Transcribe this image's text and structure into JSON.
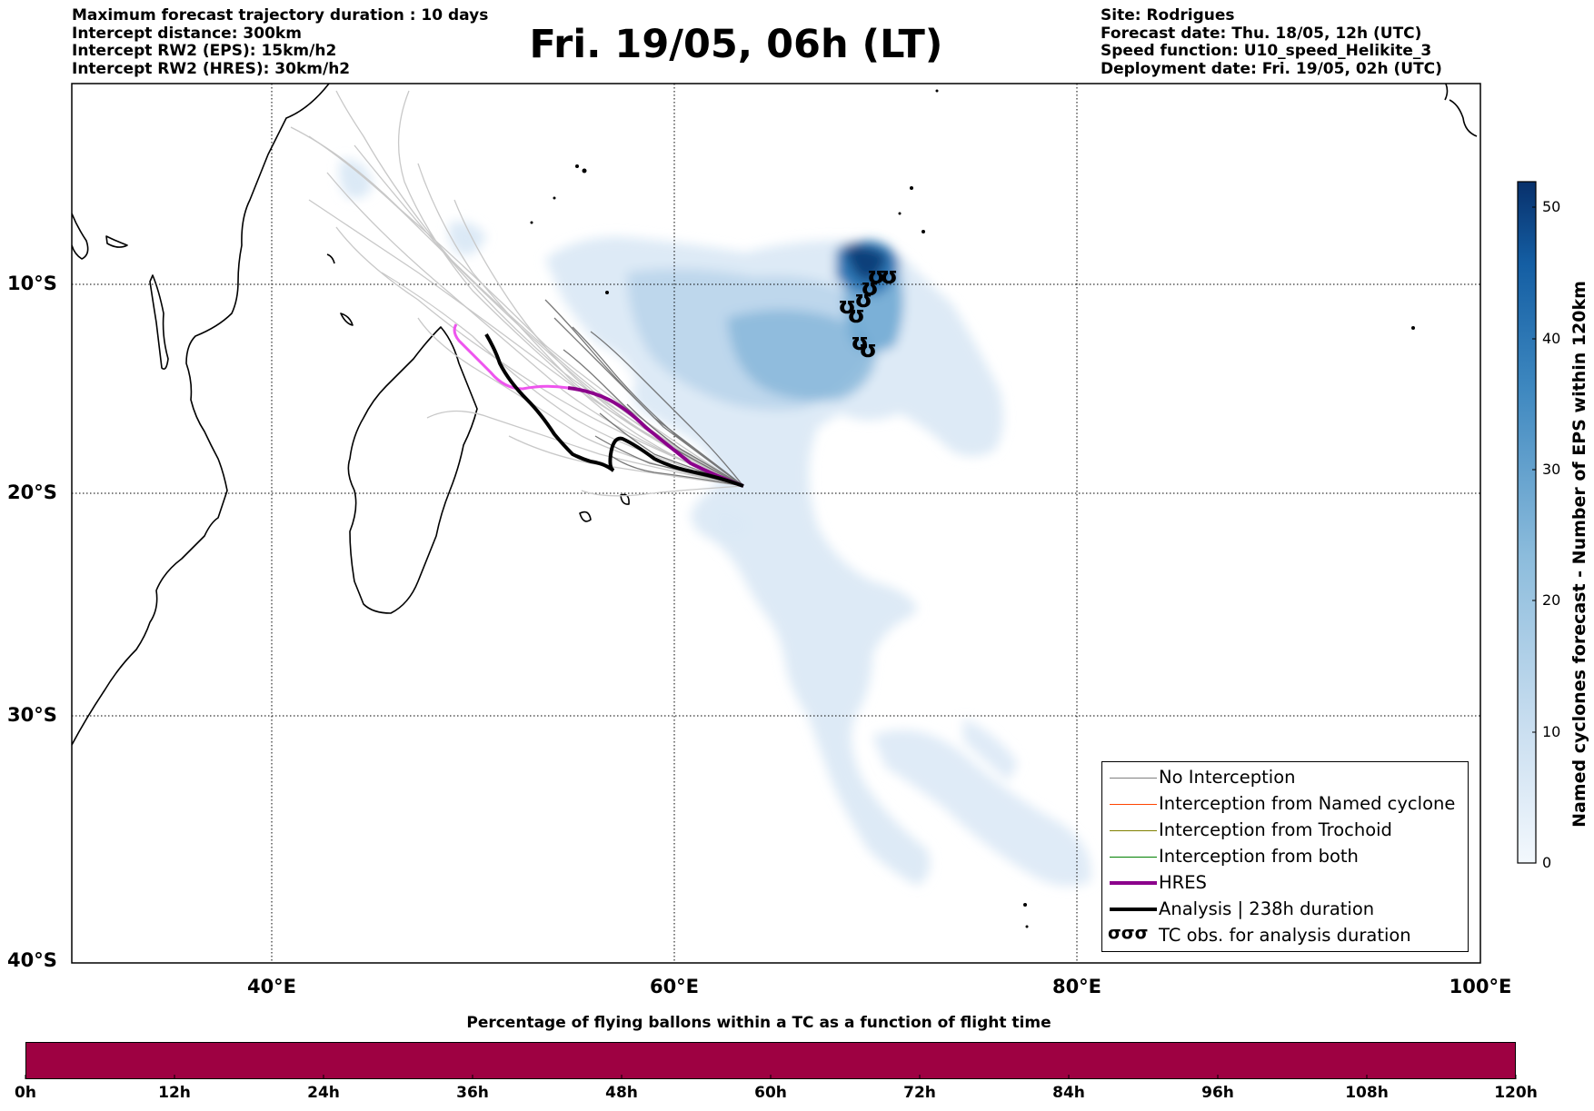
{
  "header": {
    "left_lines": [
      "Maximum forecast trajectory duration : 10 days",
      "Intercept distance: 300km",
      "Intercept RW2 (EPS):  15km/h2",
      "Intercept RW2 (HRES): 30km/h2"
    ],
    "right_lines": [
      "Site: Rodrigues",
      "Forecast date: Thu. 18/05, 12h (UTC)",
      "Speed function: U10_speed_Helikite_3",
      "Deployment date: Fri. 19/05, 02h (UTC)"
    ],
    "title": "Fri. 19/05, 06h (LT)"
  },
  "map": {
    "lat_labels": [
      "10°S",
      "20°S",
      "30°S",
      "40°S"
    ],
    "lon_labels": [
      "40°E",
      "60°E",
      "80°E",
      "100°E"
    ],
    "extent": {
      "lon_min": 30,
      "lon_max": 100,
      "lat_min": -40,
      "lat_max": -0.8
    },
    "colors": {
      "hres": "#8b008b",
      "hres_early": "#ee55ee",
      "analysis": "#000000",
      "density": "#08306b"
    }
  },
  "colorbar": {
    "label": "Named cyclones forecast - Number of EPS within 120km",
    "ticks": [
      "0",
      "10",
      "20",
      "30",
      "40",
      "50"
    ],
    "max": 52
  },
  "legend": {
    "items": [
      {
        "label": "No Interception",
        "color": "#808080"
      },
      {
        "label": "Interception from Named cyclone",
        "color": "#ff4500"
      },
      {
        "label": "Interception from Trochoid",
        "color": "#808000"
      },
      {
        "label": "Interception from both",
        "color": "#008000"
      },
      {
        "label": "HRES",
        "color": "#8b008b"
      },
      {
        "label": "Analysis | 238h duration",
        "color": "#000000"
      },
      {
        "label": "TC obs. for analysis duration",
        "color": "#000000"
      }
    ],
    "tc_symbol": "σσσ"
  },
  "progress_bar": {
    "title": "Percentage of flying ballons within a TC as a function of flight time",
    "labels": [
      "0h",
      "12h",
      "24h",
      "36h",
      "48h",
      "60h",
      "72h",
      "84h",
      "96h",
      "108h",
      "120h"
    ],
    "color": "#9e0142"
  }
}
